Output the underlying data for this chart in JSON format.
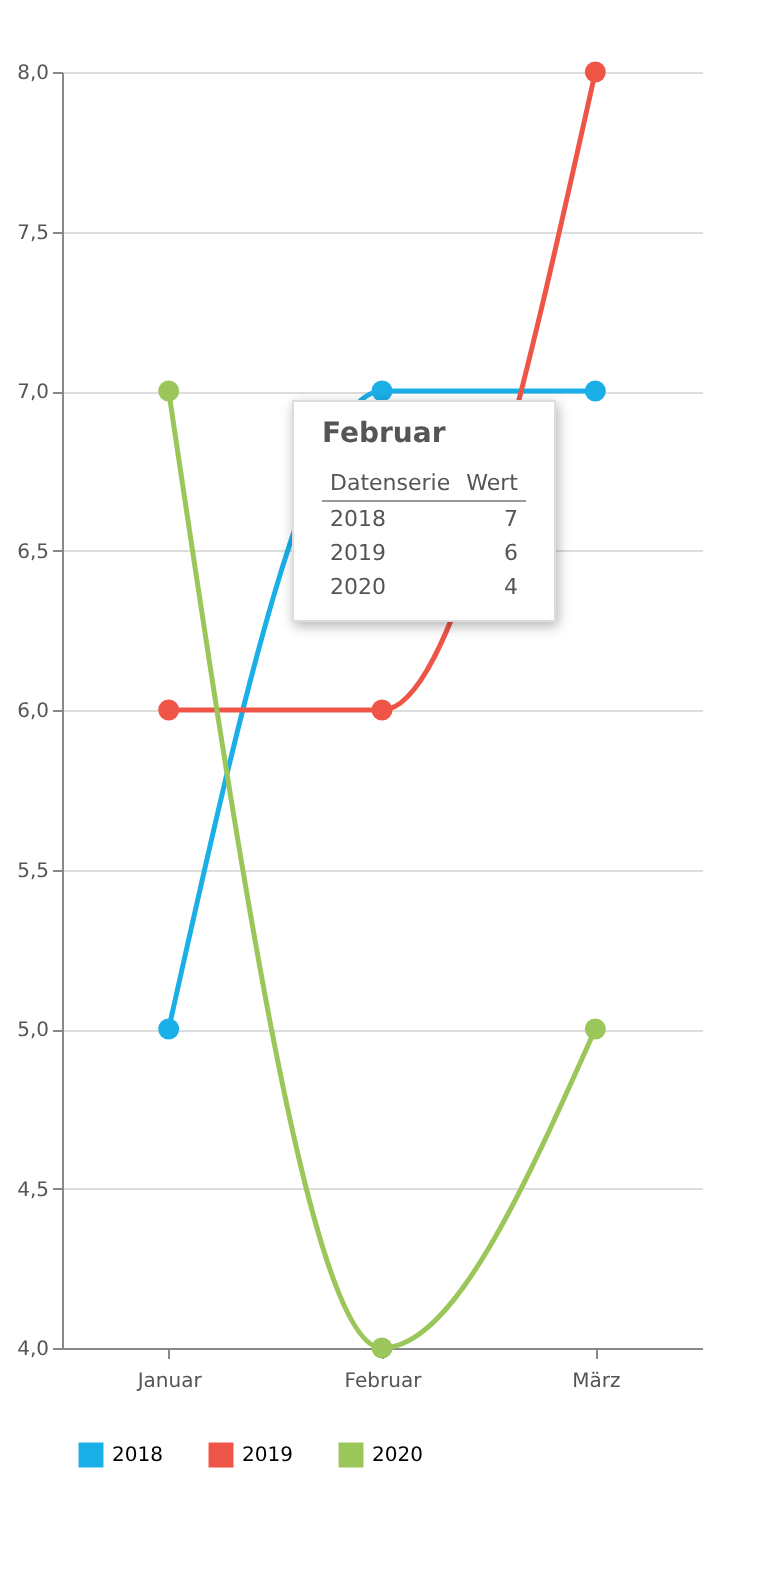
{
  "chart_data": {
    "type": "line",
    "categories": [
      "Januar",
      "Februar",
      "März"
    ],
    "series": [
      {
        "name": "2018",
        "color": "#1aafe6",
        "values": [
          5,
          7,
          7
        ]
      },
      {
        "name": "2019",
        "color": "#ef5547",
        "values": [
          6,
          6,
          8
        ]
      },
      {
        "name": "2020",
        "color": "#9ac65a",
        "values": [
          7,
          4,
          5
        ]
      }
    ],
    "ylim": [
      4,
      8
    ],
    "yticks": [
      {
        "value": 4,
        "label": "4,0"
      },
      {
        "value": 4.5,
        "label": "4,5"
      },
      {
        "value": 5,
        "label": "5,0"
      },
      {
        "value": 5.5,
        "label": "5,5"
      },
      {
        "value": 6,
        "label": "6,0"
      },
      {
        "value": 6.5,
        "label": "6,5"
      },
      {
        "value": 7,
        "label": "7,0"
      },
      {
        "value": 7.5,
        "label": "7,5"
      },
      {
        "value": 8,
        "label": "8,0"
      }
    ],
    "grid": "y",
    "legend": "bottom",
    "marker": "circle",
    "annotations": [
      "Februar",
      "Datenserie",
      "Wert",
      "2018",
      "7",
      "2019",
      "6",
      "2020",
      "4"
    ]
  }
}
